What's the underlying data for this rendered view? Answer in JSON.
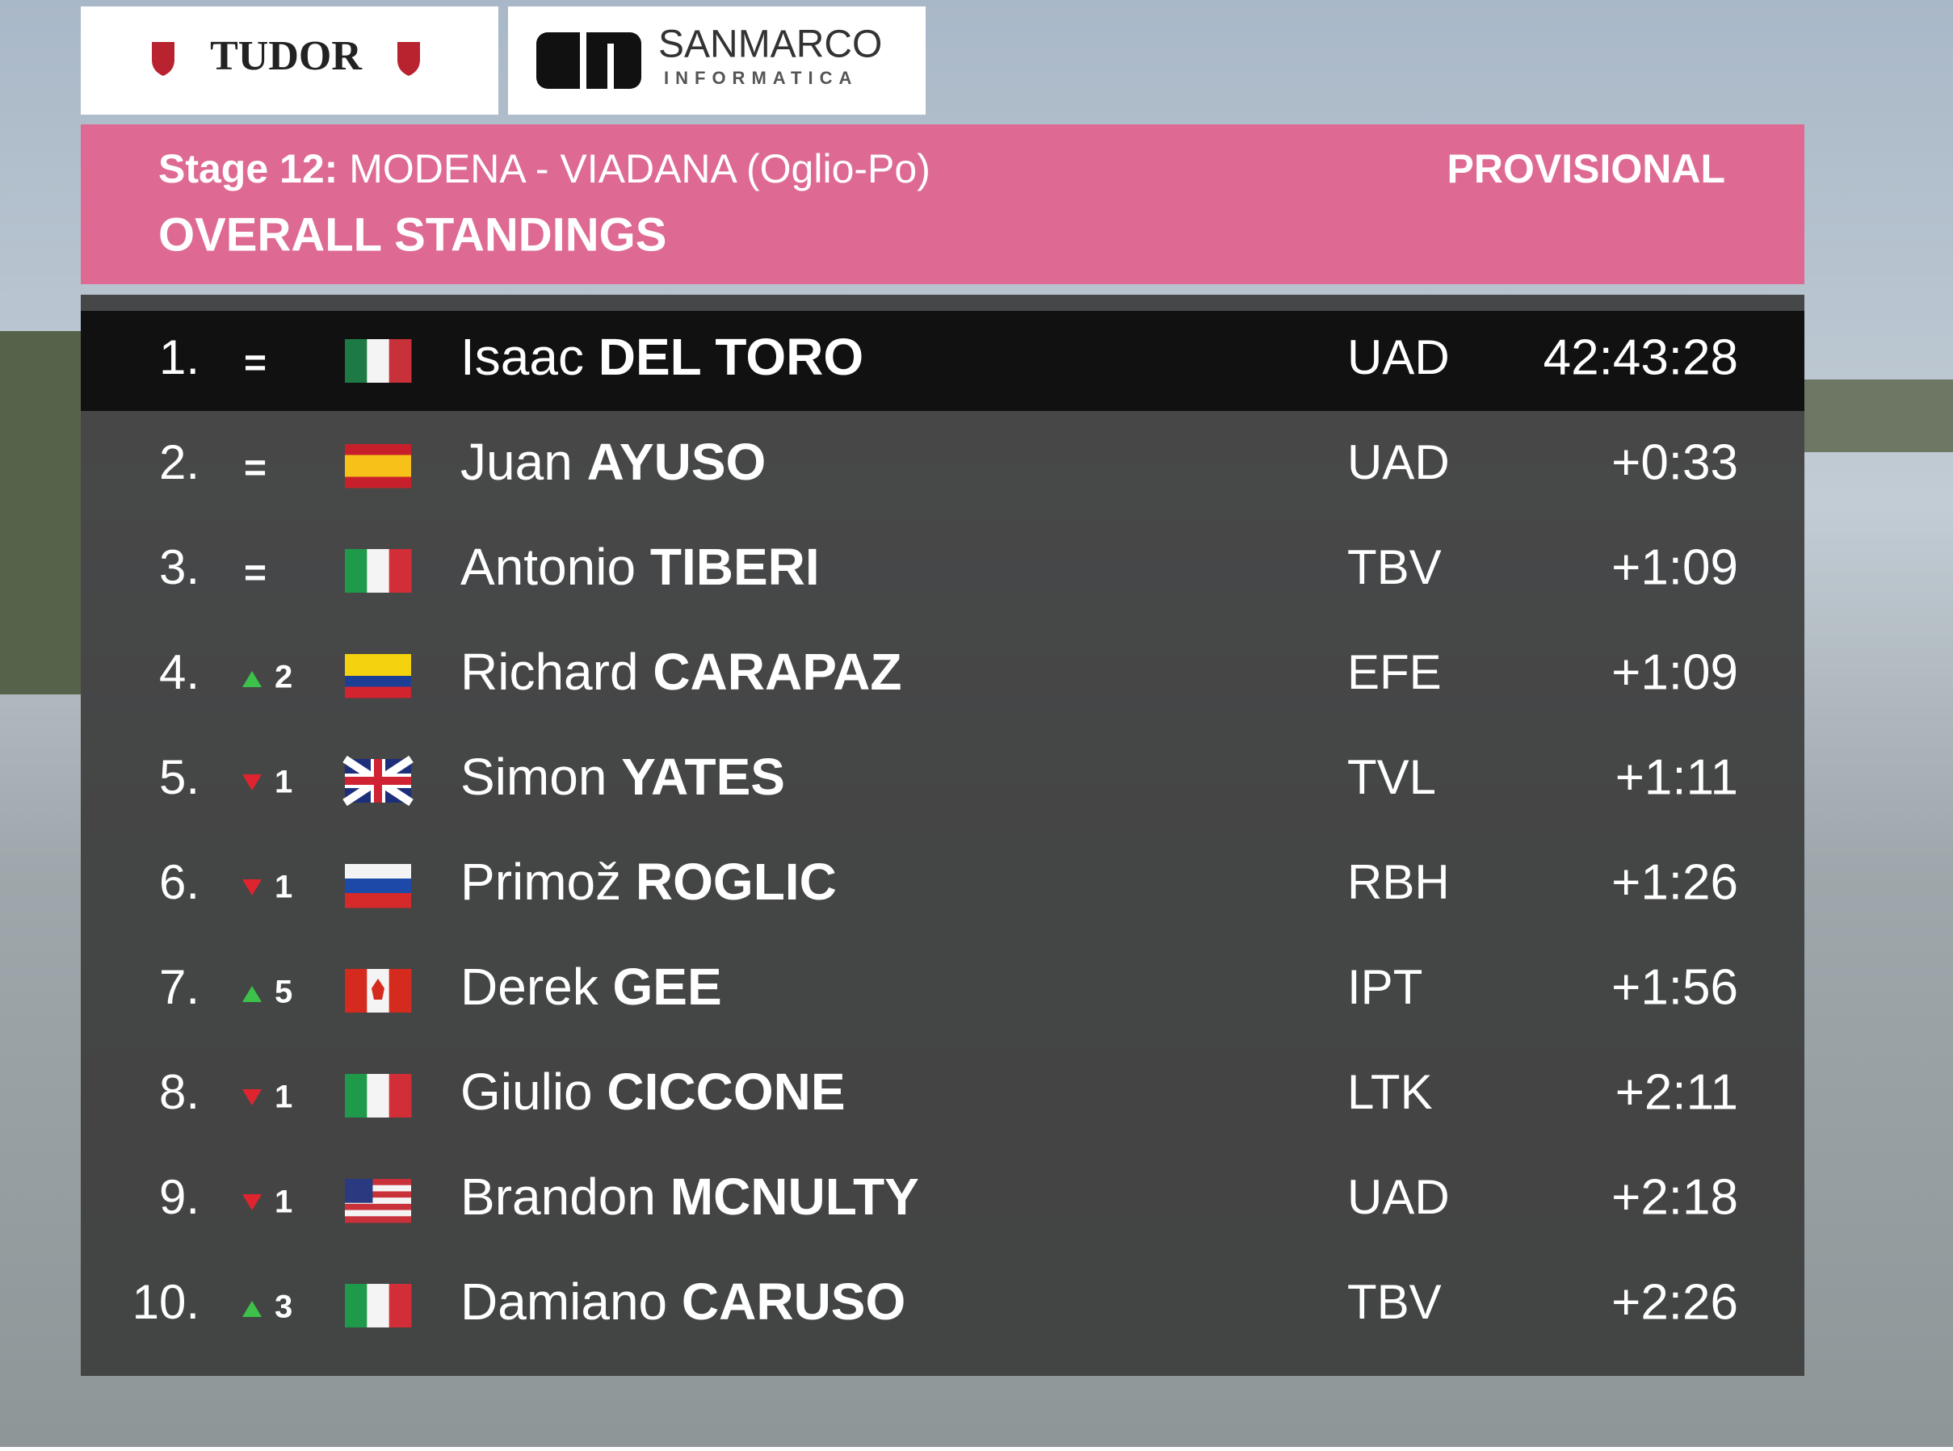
{
  "sponsors": {
    "left": "TUDOR",
    "right": "SANMARCO",
    "right_sub": "INFORMATICA"
  },
  "header": {
    "stage": "Stage 12:",
    "route": "MODENA - VIADANA (Oglio-Po)",
    "status": "PROVISIONAL",
    "title": "OVERALL STANDINGS"
  },
  "table": {
    "rows": [
      {
        "rank": "1.",
        "change": "=",
        "first": "Isaac",
        "last": "DEL TORO",
        "team": "UAD",
        "time": "42:43:28"
      },
      {
        "rank": "2.",
        "change": "=",
        "first": "Juan",
        "last": "AYUSO",
        "team": "UAD",
        "time": "+0:33"
      },
      {
        "rank": "3.",
        "change": "=",
        "first": "Antonio",
        "last": "TIBERI",
        "team": "TBV",
        "time": "+1:09"
      },
      {
        "rank": "4.",
        "change": "2",
        "trend": "up",
        "first": "Richard",
        "last": "CARAPAZ",
        "team": "EFE",
        "time": "+1:09"
      },
      {
        "rank": "5.",
        "change": "1",
        "trend": "down",
        "first": "Simon",
        "last": "YATES",
        "team": "TVL",
        "time": "+1:11"
      },
      {
        "rank": "6.",
        "change": "1",
        "trend": "down",
        "first": "Primož",
        "last": "ROGLIC",
        "team": "RBH",
        "time": "+1:26"
      },
      {
        "rank": "7.",
        "change": "5",
        "trend": "up",
        "first": "Derek",
        "last": "GEE",
        "team": "IPT",
        "time": "+1:56"
      },
      {
        "rank": "8.",
        "change": "1",
        "trend": "down",
        "first": "Giulio",
        "last": "CICCONE",
        "team": "LTK",
        "time": "+2:11"
      },
      {
        "rank": "9.",
        "change": "1",
        "trend": "down",
        "first": "Brandon",
        "last": "MCNULTY",
        "team": "UAD",
        "time": "+2:18"
      },
      {
        "rank": "10.",
        "change": "3",
        "trend": "up",
        "first": "Damiano",
        "last": "CARUSO",
        "team": "TBV",
        "time": "+2:26"
      }
    ]
  }
}
